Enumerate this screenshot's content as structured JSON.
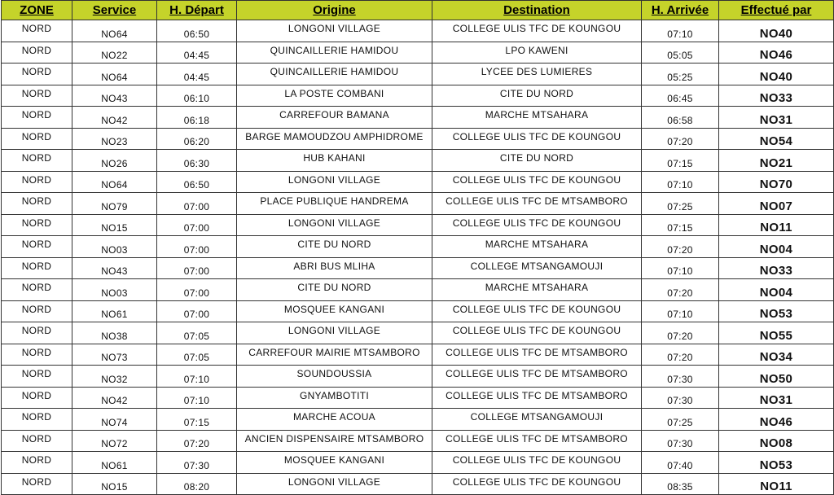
{
  "header_color": "#c5d32a",
  "columns": [
    "ZONE",
    "Service",
    "H. Départ",
    "Origine",
    "Destination",
    "H. Arrivée",
    "Effectué par"
  ],
  "rows": [
    [
      "NORD",
      "NO64",
      "06:50",
      "LONGONI VILLAGE",
      "COLLEGE ULIS TFC DE KOUNGOU",
      "07:10",
      "NO40"
    ],
    [
      "NORD",
      "NO22",
      "04:45",
      "QUINCAILLERIE HAMIDOU",
      "LPO KAWENI",
      "05:05",
      "NO46"
    ],
    [
      "NORD",
      "NO64",
      "04:45",
      "QUINCAILLERIE HAMIDOU",
      "LYCEE DES LUMIERES",
      "05:25",
      "NO40"
    ],
    [
      "NORD",
      "NO43",
      "06:10",
      "LA POSTE COMBANI",
      "CITE DU NORD",
      "06:45",
      "NO33"
    ],
    [
      "NORD",
      "NO42",
      "06:18",
      "CARREFOUR BAMANA",
      "MARCHE MTSAHARA",
      "06:58",
      "NO31"
    ],
    [
      "NORD",
      "NO23",
      "06:20",
      "BARGE MAMOUDZOU AMPHIDROME",
      "COLLEGE ULIS TFC DE KOUNGOU",
      "07:20",
      "NO54"
    ],
    [
      "NORD",
      "NO26",
      "06:30",
      "HUB KAHANI",
      "CITE DU NORD",
      "07:15",
      "NO21"
    ],
    [
      "NORD",
      "NO64",
      "06:50",
      "LONGONI VILLAGE",
      "COLLEGE ULIS TFC DE KOUNGOU",
      "07:10",
      "NO70"
    ],
    [
      "NORD",
      "NO79",
      "07:00",
      "PLACE PUBLIQUE HANDREMA",
      "COLLEGE ULIS TFC DE MTSAMBORO",
      "07:25",
      "NO07"
    ],
    [
      "NORD",
      "NO15",
      "07:00",
      "LONGONI VILLAGE",
      "COLLEGE ULIS TFC DE KOUNGOU",
      "07:15",
      "NO11"
    ],
    [
      "NORD",
      "NO03",
      "07:00",
      "CITE DU NORD",
      "MARCHE MTSAHARA",
      "07:20",
      "NO04"
    ],
    [
      "NORD",
      "NO43",
      "07:00",
      "ABRI BUS MLIHA",
      "COLLEGE MTSANGAMOUJI",
      "07:10",
      "NO33"
    ],
    [
      "NORD",
      "NO03",
      "07:00",
      "CITE DU NORD",
      "MARCHE MTSAHARA",
      "07:20",
      "NO04"
    ],
    [
      "NORD",
      "NO61",
      "07:00",
      "MOSQUEE KANGANI",
      "COLLEGE ULIS TFC DE KOUNGOU",
      "07:10",
      "NO53"
    ],
    [
      "NORD",
      "NO38",
      "07:05",
      "LONGONI VILLAGE",
      "COLLEGE ULIS TFC DE KOUNGOU",
      "07:20",
      "NO55"
    ],
    [
      "NORD",
      "NO73",
      "07:05",
      "CARREFOUR MAIRIE MTSAMBORO",
      "COLLEGE ULIS TFC DE MTSAMBORO",
      "07:20",
      "NO34"
    ],
    [
      "NORD",
      "NO32",
      "07:10",
      "SOUNDOUSSIA",
      "COLLEGE ULIS TFC DE MTSAMBORO",
      "07:30",
      "NO50"
    ],
    [
      "NORD",
      "NO42",
      "07:10",
      "GNYAMBOTITI",
      "COLLEGE ULIS TFC DE MTSAMBORO",
      "07:30",
      "NO31"
    ],
    [
      "NORD",
      "NO74",
      "07:15",
      "MARCHE ACOUA",
      "COLLEGE MTSANGAMOUJI",
      "07:25",
      "NO46"
    ],
    [
      "NORD",
      "NO72",
      "07:20",
      "ANCIEN DISPENSAIRE MTSAMBORO",
      "COLLEGE ULIS TFC DE MTSAMBORO",
      "07:30",
      "NO08"
    ],
    [
      "NORD",
      "NO61",
      "07:30",
      "MOSQUEE KANGANI",
      "COLLEGE ULIS TFC DE KOUNGOU",
      "07:40",
      "NO53"
    ],
    [
      "NORD",
      "NO15",
      "08:20",
      "LONGONI VILLAGE",
      "COLLEGE ULIS TFC DE KOUNGOU",
      "08:35",
      "NO11"
    ]
  ]
}
